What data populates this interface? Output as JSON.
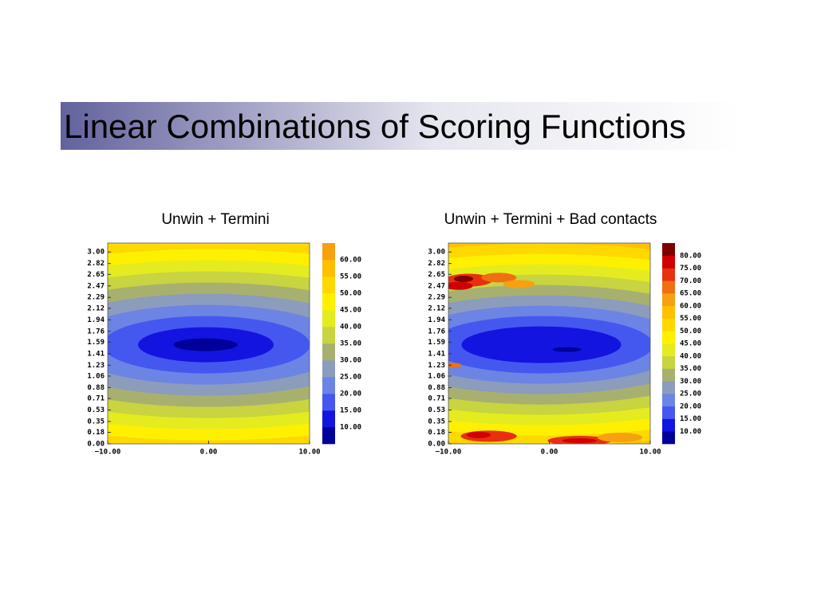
{
  "title": "Linear Combinations of Scoring Functions",
  "chart_data": [
    {
      "type": "contour",
      "title": "Unwin + Termini",
      "xlim": [
        -10,
        10
      ],
      "ylim": [
        0,
        3.14
      ],
      "xticks": [
        {
          "value": -10,
          "label": "−10.00"
        },
        {
          "value": 0,
          "label": "0.00"
        },
        {
          "value": 10,
          "label": "10.00"
        }
      ],
      "yticks": [
        {
          "value": 0,
          "label": "0.00"
        },
        {
          "value": 0.18,
          "label": "0.18"
        },
        {
          "value": 0.35,
          "label": "0.35"
        },
        {
          "value": 0.53,
          "label": "0.53"
        },
        {
          "value": 0.71,
          "label": "0.71"
        },
        {
          "value": 0.88,
          "label": "0.88"
        },
        {
          "value": 1.06,
          "label": "1.06"
        },
        {
          "value": 1.23,
          "label": "1.23"
        },
        {
          "value": 1.41,
          "label": "1.41"
        },
        {
          "value": 1.59,
          "label": "1.59"
        },
        {
          "value": 1.76,
          "label": "1.76"
        },
        {
          "value": 1.94,
          "label": "1.94"
        },
        {
          "value": 2.12,
          "label": "2.12"
        },
        {
          "value": 2.29,
          "label": "2.29"
        },
        {
          "value": 2.47,
          "label": "2.47"
        },
        {
          "value": 2.65,
          "label": "2.65"
        },
        {
          "value": 2.82,
          "label": "2.82"
        },
        {
          "value": 3,
          "label": "3.00"
        }
      ],
      "levels": [
        {
          "value": 10,
          "label": "10.00"
        },
        {
          "value": 15,
          "label": "15.00"
        },
        {
          "value": 20,
          "label": "20.00"
        },
        {
          "value": 25,
          "label": "25.00"
        },
        {
          "value": 30,
          "label": "30.00"
        },
        {
          "value": 35,
          "label": "35.00"
        },
        {
          "value": 40,
          "label": "40.00"
        },
        {
          "value": 45,
          "label": "45.00"
        },
        {
          "value": 50,
          "label": "50.00"
        },
        {
          "value": 55,
          "label": "55.00"
        },
        {
          "value": 60,
          "label": "60.00"
        }
      ],
      "colors": [
        "#00009a",
        "#1414e0",
        "#4458f0",
        "#6c84e4",
        "#8c9cbc",
        "#a8b070",
        "#c8d440",
        "#e4ec20",
        "#fff000",
        "#ffd800",
        "#ffc000",
        "#f8a010"
      ]
    },
    {
      "type": "contour",
      "title": "Unwin + Termini + Bad contacts",
      "xlim": [
        -10,
        10
      ],
      "ylim": [
        0,
        3.14
      ],
      "xticks": [
        {
          "value": -10,
          "label": "−10.00"
        },
        {
          "value": 0,
          "label": "0.00"
        },
        {
          "value": 10,
          "label": "10.00"
        }
      ],
      "yticks": [
        {
          "value": 0,
          "label": "0.00"
        },
        {
          "value": 0.18,
          "label": "0.18"
        },
        {
          "value": 0.35,
          "label": "0.35"
        },
        {
          "value": 0.53,
          "label": "0.53"
        },
        {
          "value": 0.71,
          "label": "0.71"
        },
        {
          "value": 0.88,
          "label": "0.88"
        },
        {
          "value": 1.06,
          "label": "1.06"
        },
        {
          "value": 1.23,
          "label": "1.23"
        },
        {
          "value": 1.41,
          "label": "1.41"
        },
        {
          "value": 1.59,
          "label": "1.59"
        },
        {
          "value": 1.76,
          "label": "1.76"
        },
        {
          "value": 1.94,
          "label": "1.94"
        },
        {
          "value": 2.12,
          "label": "2.12"
        },
        {
          "value": 2.29,
          "label": "2.29"
        },
        {
          "value": 2.47,
          "label": "2.47"
        },
        {
          "value": 2.65,
          "label": "2.65"
        },
        {
          "value": 2.82,
          "label": "2.82"
        },
        {
          "value": 3,
          "label": "3.00"
        }
      ],
      "levels": [
        {
          "value": 10,
          "label": "10.00"
        },
        {
          "value": 15,
          "label": "15.00"
        },
        {
          "value": 20,
          "label": "20.00"
        },
        {
          "value": 25,
          "label": "25.00"
        },
        {
          "value": 30,
          "label": "30.00"
        },
        {
          "value": 35,
          "label": "35.00"
        },
        {
          "value": 40,
          "label": "40.00"
        },
        {
          "value": 45,
          "label": "45.00"
        },
        {
          "value": 50,
          "label": "50.00"
        },
        {
          "value": 55,
          "label": "55.00"
        },
        {
          "value": 60,
          "label": "60.00"
        },
        {
          "value": 65,
          "label": "65.00"
        },
        {
          "value": 70,
          "label": "70.00"
        },
        {
          "value": 75,
          "label": "75.00"
        },
        {
          "value": 80,
          "label": "80.00"
        }
      ],
      "colors": [
        "#00009a",
        "#1414e0",
        "#4458f0",
        "#6c84e4",
        "#8c9cbc",
        "#a8b070",
        "#c8d440",
        "#e4ec20",
        "#fff000",
        "#ffd800",
        "#ffc000",
        "#f8a010",
        "#f07010",
        "#e83010",
        "#d00000",
        "#800000"
      ]
    }
  ]
}
